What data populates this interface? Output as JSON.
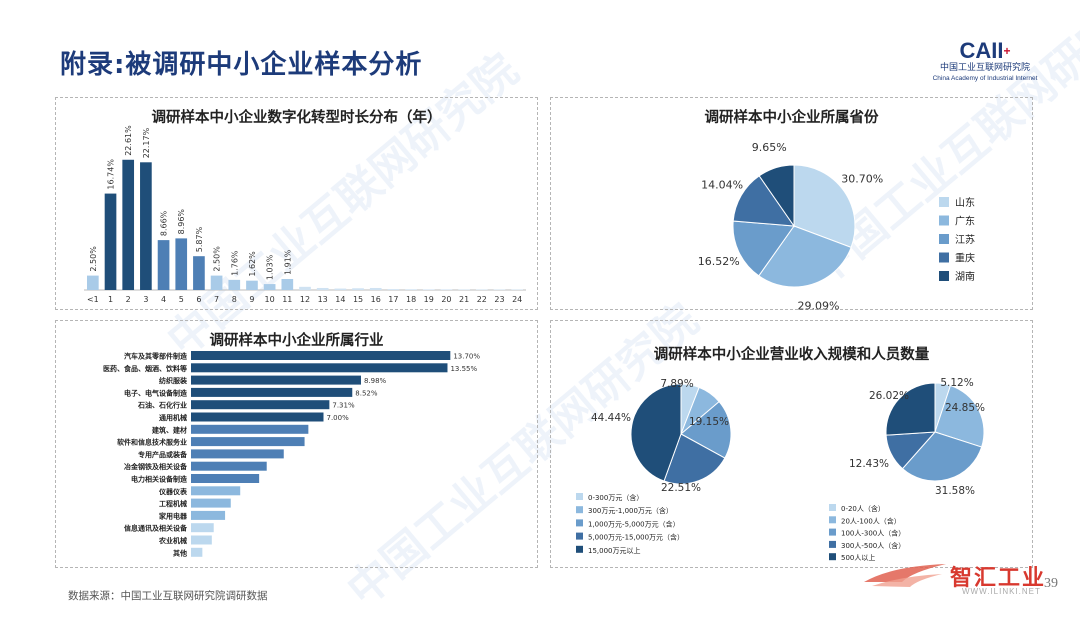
{
  "page_title": "附录:被调研中小企业样本分析",
  "logo": {
    "mark": "CAII",
    "cn": "中国工业互联网研究院",
    "en": "China Academy of Industrial Internet"
  },
  "watermark_text": "中国工业互联网研究院",
  "footer_source": "数据来源：中国工业互联网研究院调研数据",
  "page_number": "39",
  "brand": {
    "name": "智汇工业",
    "url": "WWW.ILINKI.NET"
  },
  "colors": {
    "dark": "#1f4e79",
    "mid": "#4e7fb5",
    "light": "#8cb8de",
    "pale": "#bcd8ee",
    "title": "#1d3b7a"
  },
  "chart_data": [
    {
      "type": "bar",
      "title": "调研样本中小企业数字化转型时长分布（年）",
      "categories": [
        "<1",
        "1",
        "2",
        "3",
        "4",
        "5",
        "6",
        "7",
        "8",
        "9",
        "10",
        "11",
        "12",
        "13",
        "14",
        "15",
        "16",
        "17",
        "18",
        "19",
        "20",
        "21",
        "22",
        "23",
        "24"
      ],
      "values": [
        2.5,
        16.74,
        22.61,
        22.17,
        8.66,
        8.96,
        5.87,
        2.5,
        1.76,
        1.62,
        1.03,
        1.91,
        0.55,
        0.35,
        0.25,
        0.3,
        0.35,
        0.15,
        0.12,
        0.1,
        0.1,
        0.08,
        0.08,
        0.08,
        0.08
      ],
      "labels": [
        "2.50%",
        "16.74%",
        "22.61%",
        "22.17%",
        "8.66%",
        "8.96%",
        "5.87%",
        "2.50%",
        "1.76%",
        "1.62%",
        "1.03%",
        "1.91%",
        "",
        "",
        "",
        "",
        "",
        "",
        "",
        "",
        "",
        "",
        "",
        "",
        ""
      ],
      "ylim": [
        0,
        25
      ]
    },
    {
      "type": "pie",
      "title": "调研样本中小企业所属省份",
      "categories": [
        "山东",
        "广东",
        "江苏",
        "重庆",
        "湖南"
      ],
      "values": [
        30.7,
        29.09,
        16.52,
        14.04,
        9.65
      ],
      "labels": [
        "30.70%",
        "29.09%",
        "16.52%",
        "14.04%",
        "9.65%"
      ],
      "colors": [
        "#bcd8ee",
        "#8cb8de",
        "#6a9ccb",
        "#3f6fa3",
        "#1f4e79"
      ],
      "legend": "right"
    },
    {
      "type": "bar",
      "orientation": "horizontal",
      "title": "调研样本中小企业所属行业",
      "categories": [
        "汽车及其零部件制造",
        "医药、食品、烟酒、饮料等",
        "纺织服装",
        "电子、电气设备制造",
        "石油、石化行业",
        "通用机械",
        "建筑、建材",
        "软件和信息技术服务业",
        "专用产品或装备",
        "冶金钢铁及相关设备",
        "电力相关设备制造",
        "仪器仪表",
        "工程机械",
        "家用电器",
        "信息通讯及相关设备",
        "农业机械",
        "其他"
      ],
      "values": [
        13.7,
        13.55,
        8.98,
        8.52,
        7.31,
        7.0,
        6.2,
        6.0,
        4.9,
        4.0,
        3.6,
        2.6,
        2.1,
        1.8,
        1.2,
        1.1,
        0.6
      ],
      "labels": [
        "13.70%",
        "13.55%",
        "8.98%",
        "8.52%",
        "7.31%",
        "7.00%",
        "",
        "",
        "",
        "",
        "",
        "",
        "",
        "",
        "",
        "",
        ""
      ],
      "xlim": [
        0,
        14
      ]
    },
    {
      "type": "pie",
      "title": "调研样本中小企业营业收入规模和人员数量",
      "categories": [
        "0-300万元（含）",
        "300万元-1,000万元（含）",
        "1,000万元-5,000万元（含）",
        "5,000万元-15,000万元（含）",
        "15,000万元以上"
      ],
      "values": [
        5.9,
        7.89,
        19.15,
        22.51,
        44.44
      ],
      "labels": [
        "",
        "7.89%",
        "19.15%",
        "22.51%",
        "44.44%"
      ],
      "colors": [
        "#bcd8ee",
        "#8cb8de",
        "#6a9ccb",
        "#3f6fa3",
        "#1f4e79"
      ]
    },
    {
      "type": "pie",
      "categories": [
        "0-20人（含）",
        "20人-100人（含）",
        "100人-300人（含）",
        "300人-500人（含）",
        "500人以上"
      ],
      "values": [
        5.12,
        24.85,
        31.58,
        12.43,
        26.02
      ],
      "labels": [
        "5.12%",
        "24.85%",
        "31.58%",
        "12.43%",
        "26.02%"
      ],
      "colors": [
        "#bcd8ee",
        "#8cb8de",
        "#6a9ccb",
        "#3f6fa3",
        "#1f4e79"
      ]
    }
  ]
}
